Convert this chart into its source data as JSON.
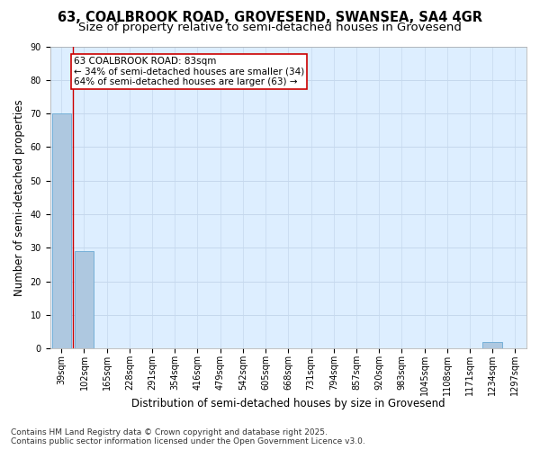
{
  "title_line1": "63, COALBROOK ROAD, GROVESEND, SWANSEA, SA4 4GR",
  "title_line2": "Size of property relative to semi-detached houses in Grovesend",
  "xlabel": "Distribution of semi-detached houses by size in Grovesend",
  "ylabel": "Number of semi-detached properties",
  "categories": [
    "39sqm",
    "102sqm",
    "165sqm",
    "228sqm",
    "291sqm",
    "354sqm",
    "416sqm",
    "479sqm",
    "542sqm",
    "605sqm",
    "668sqm",
    "731sqm",
    "794sqm",
    "857sqm",
    "920sqm",
    "983sqm",
    "1045sqm",
    "1108sqm",
    "1171sqm",
    "1234sqm",
    "1297sqm"
  ],
  "values": [
    70,
    29,
    0,
    0,
    0,
    0,
    0,
    0,
    0,
    0,
    0,
    0,
    0,
    0,
    0,
    0,
    0,
    0,
    0,
    2,
    0
  ],
  "bar_color": "#aec8e0",
  "bar_edge_color": "#6aaad4",
  "highlight_line_color": "#cc0000",
  "annotation_box_text": "63 COALBROOK ROAD: 83sqm\n← 34% of semi-detached houses are smaller (34)\n64% of semi-detached houses are larger (63) →",
  "annotation_box_color": "#cc0000",
  "annotation_box_bg": "#ffffff",
  "ylim": [
    0,
    90
  ],
  "yticks": [
    0,
    10,
    20,
    30,
    40,
    50,
    60,
    70,
    80,
    90
  ],
  "background_color": "#ddeeff",
  "grid_color": "#c5d8ed",
  "footer_line1": "Contains HM Land Registry data © Crown copyright and database right 2025.",
  "footer_line2": "Contains public sector information licensed under the Open Government Licence v3.0.",
  "title_fontsize": 10.5,
  "subtitle_fontsize": 9.5,
  "axis_label_fontsize": 8.5,
  "tick_fontsize": 7,
  "annotation_fontsize": 7.5,
  "footer_fontsize": 6.5
}
